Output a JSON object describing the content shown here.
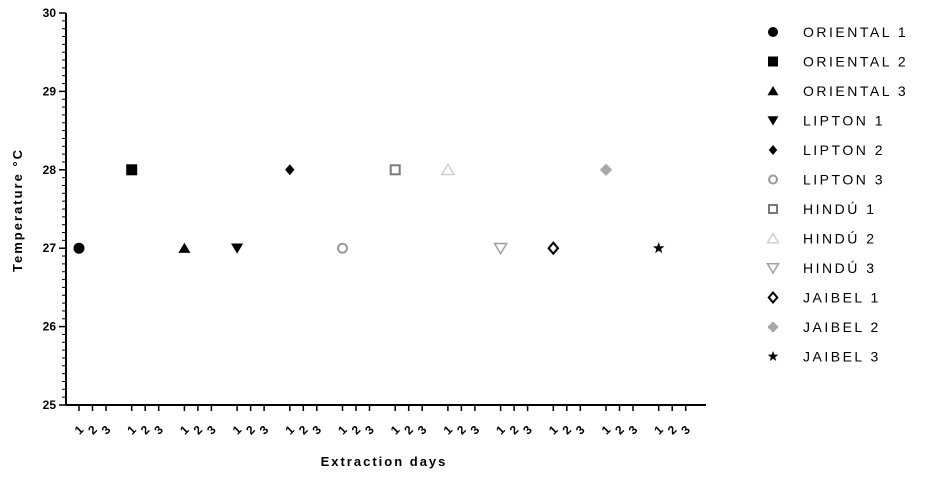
{
  "chart_data": {
    "type": "scatter",
    "xlabel": "Extraction days",
    "ylabel": "Temperature °C",
    "ylim": [
      25,
      30
    ],
    "yticks": [
      "25",
      "26",
      "27",
      "28",
      "29",
      "30"
    ],
    "x_tick_pattern": [
      "1",
      "2",
      "3"
    ],
    "legend_position": "right",
    "grid": false,
    "series": [
      {
        "name": "ORIENTAL 1",
        "day": 1,
        "value": 27,
        "marker": "circle",
        "color": "#000000"
      },
      {
        "name": "ORIENTAL 2",
        "day": 1,
        "value": 28,
        "marker": "square",
        "color": "#000000"
      },
      {
        "name": "ORIENTAL 3",
        "day": 1,
        "value": 27,
        "marker": "triangle-up",
        "color": "#000000"
      },
      {
        "name": "LIPTON 1",
        "day": 1,
        "value": 27,
        "marker": "triangle-down",
        "color": "#000000"
      },
      {
        "name": "LIPTON 2",
        "day": 1,
        "value": 28,
        "marker": "diamond",
        "color": "#000000"
      },
      {
        "name": "LIPTON 3",
        "day": 1,
        "value": 27,
        "marker": "circle-open",
        "color": "#9a9a9a"
      },
      {
        "name": "HINDÚ 1",
        "day": 1,
        "value": 28,
        "marker": "square-open",
        "color": "#7a7a7a"
      },
      {
        "name": "HINDÚ 2",
        "day": 1,
        "value": 28,
        "marker": "triangle-up-open",
        "color": "#d0d0d0"
      },
      {
        "name": "HINDÚ 3",
        "day": 1,
        "value": 27,
        "marker": "triangle-down-open",
        "color": "#a0a0a0"
      },
      {
        "name": "JAIBEL 1",
        "day": 1,
        "value": 27,
        "marker": "diamond-open",
        "color": "#000000"
      },
      {
        "name": "JAIBEL 2",
        "day": 1,
        "value": 28,
        "marker": "plus-circle",
        "color": "#a8a8a8"
      },
      {
        "name": "JAIBEL 3",
        "day": 1,
        "value": 27,
        "marker": "star",
        "color": "#000000"
      }
    ]
  }
}
